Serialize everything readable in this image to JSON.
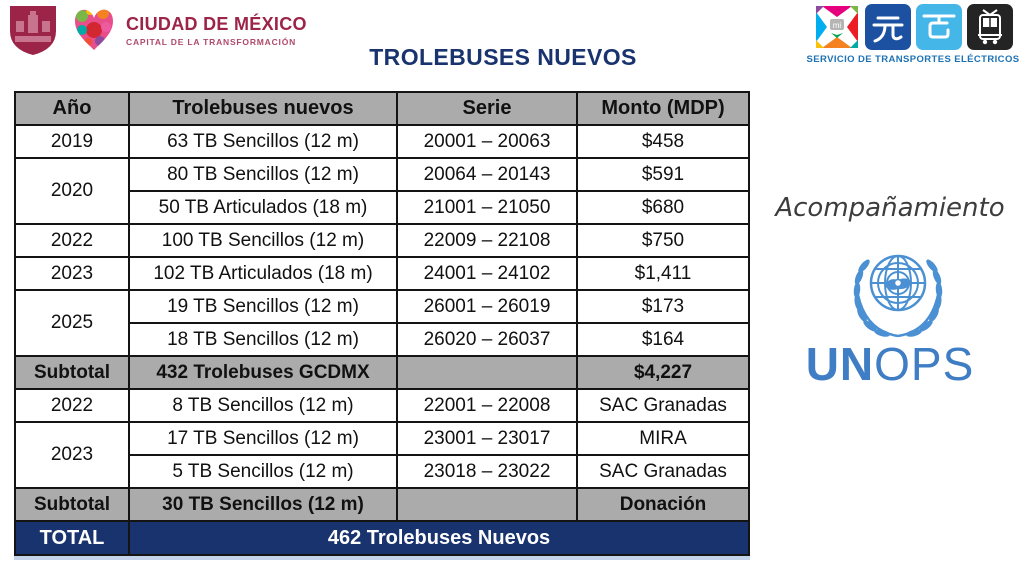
{
  "header": {
    "brand_name": "CIUDAD DE MÉXICO",
    "brand_tagline": "CAPITAL DE LA TRANSFORMACIÓN",
    "title": "TROLEBUSES NUEVOS",
    "agency_caption": "SERVICIO DE TRANSPORTES ELÉCTRICOS",
    "agency_logos": [
      "movilidad-integrada-icon",
      "trolebus-icon",
      "cablebus-icon",
      "tren-ligero-icon"
    ]
  },
  "table": {
    "columns": [
      "Año",
      "Trolebuses nuevos",
      "Serie",
      "Monto (MDP)"
    ],
    "rows": [
      {
        "kind": "header",
        "cells": [
          {
            "t": "Año"
          },
          {
            "t": "Trolebuses nuevos"
          },
          {
            "t": "Serie"
          },
          {
            "t": "Monto (MDP)"
          }
        ]
      },
      {
        "kind": "data",
        "cells": [
          {
            "t": "2019"
          },
          {
            "t": "63 TB Sencillos (12 m)"
          },
          {
            "t": "20001 – 20063"
          },
          {
            "t": "$458"
          }
        ]
      },
      {
        "kind": "data",
        "cells": [
          {
            "t": "2020",
            "rs": 2
          },
          {
            "t": "80 TB Sencillos (12 m)"
          },
          {
            "t": "20064 – 20143"
          },
          {
            "t": "$591"
          }
        ]
      },
      {
        "kind": "data",
        "cells": [
          {
            "t": "50 TB Articulados (18 m)"
          },
          {
            "t": "21001 – 21050"
          },
          {
            "t": "$680"
          }
        ]
      },
      {
        "kind": "data",
        "cells": [
          {
            "t": "2022"
          },
          {
            "t": "100 TB Sencillos (12 m)"
          },
          {
            "t": "22009 – 22108"
          },
          {
            "t": "$750"
          }
        ]
      },
      {
        "kind": "data",
        "cells": [
          {
            "t": "2023"
          },
          {
            "t": "102 TB Articulados (18 m)"
          },
          {
            "t": "24001 – 24102"
          },
          {
            "t": "$1,411"
          }
        ]
      },
      {
        "kind": "data",
        "cells": [
          {
            "t": "2025",
            "rs": 2
          },
          {
            "t": "19 TB Sencillos (12 m)"
          },
          {
            "t": "26001 – 26019"
          },
          {
            "t": "$173"
          }
        ]
      },
      {
        "kind": "data",
        "cells": [
          {
            "t": "18 TB Sencillos (12 m)"
          },
          {
            "t": "26020 – 26037"
          },
          {
            "t": "$164"
          }
        ]
      },
      {
        "kind": "subtotal",
        "cells": [
          {
            "t": "Subtotal"
          },
          {
            "t": "432 Trolebuses GCDMX"
          },
          {
            "t": ""
          },
          {
            "t": "$4,227"
          }
        ]
      },
      {
        "kind": "data",
        "cells": [
          {
            "t": "2022"
          },
          {
            "t": "8 TB Sencillos (12 m)"
          },
          {
            "t": "22001 – 22008"
          },
          {
            "t": "SAC Granadas"
          }
        ]
      },
      {
        "kind": "data",
        "cells": [
          {
            "t": "2023",
            "rs": 2
          },
          {
            "t": "17 TB Sencillos (12 m)"
          },
          {
            "t": "23001 – 23017"
          },
          {
            "t": "MIRA"
          }
        ]
      },
      {
        "kind": "data",
        "cells": [
          {
            "t": "5 TB Sencillos (12 m)"
          },
          {
            "t": "23018 – 23022"
          },
          {
            "t": "SAC Granadas"
          }
        ]
      },
      {
        "kind": "subtotal",
        "cells": [
          {
            "t": "Subtotal"
          },
          {
            "t": "30 TB Sencillos (12 m)"
          },
          {
            "t": ""
          },
          {
            "t": "Donación"
          }
        ]
      },
      {
        "kind": "total",
        "cells": [
          {
            "t": "TOTAL"
          },
          {
            "t": "462 Trolebuses Nuevos",
            "cs": 3
          }
        ]
      }
    ]
  },
  "sidebar": {
    "accompaniment_label": "Acompañamiento",
    "unops_un": "UN",
    "unops_ops": "OPS"
  },
  "colors": {
    "navy": "#19336e",
    "table_header_gray": "#ababab",
    "cdmx_maroon": "#9d2449",
    "ste_blue": "#1d72b4",
    "un_blue": "#4a90d2",
    "trolebus_square": "#1b51a0",
    "cablebus_square": "#45b6e8",
    "tren_ligero_square": "#242424"
  }
}
